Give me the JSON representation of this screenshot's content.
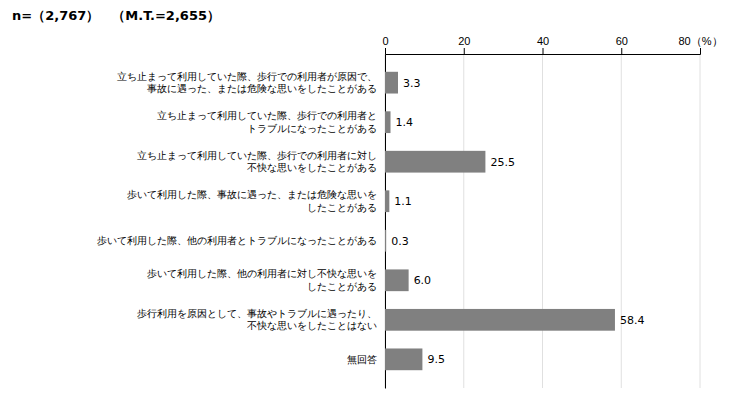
{
  "chart_data": {
    "type": "bar",
    "orientation": "horizontal",
    "title": "n=（2,767）　（M.T.=2,655）",
    "categories": [
      "立ち止まって利用していた際、歩行での利用者が原因で、\n事故に遇った、または危険な思いをしたことがある",
      "立ち止まって利用していた際、歩行での利用者と\nトラブルになったことがある",
      "立ち止まって利用していた際、歩行での利用者に対し\n不快な思いをしたことがある",
      "歩いて利用した際、事故に遇った、または危険な思いを\nしたことがある",
      "歩いて利用した際、他の利用者とトラブルになったことがある",
      "歩いて利用した際、他の利用者に対し不快な思いを\nしたことがある",
      "歩行利用を原因として、事故やトラブルに遇ったり、\n不快な思いをしたことはない",
      "無回答"
    ],
    "values": [
      3.3,
      1.4,
      25.5,
      1.1,
      0.3,
      6.0,
      58.4,
      9.5
    ],
    "value_labels": [
      "3.3",
      "1.4",
      "25.5",
      "1.1",
      "0.3",
      "6.0",
      "58.4",
      "9.5"
    ],
    "data_labels": true,
    "color": "#808080",
    "xlim": [
      0,
      80
    ],
    "xticks": [
      0,
      20,
      40,
      60,
      {
        "value": 80,
        "label": "80（%）"
      }
    ],
    "grid": true
  }
}
